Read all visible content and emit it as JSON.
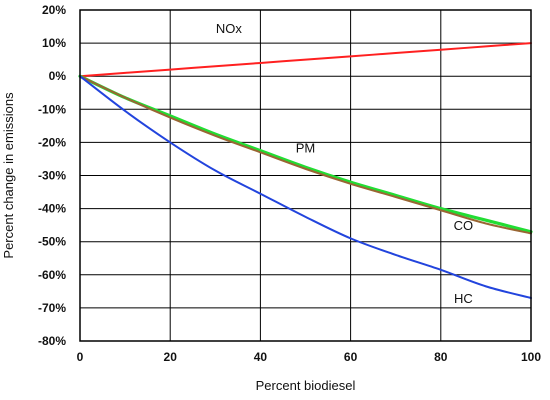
{
  "chart_data": {
    "type": "line",
    "title": "",
    "xlabel": "Percent biodiesel",
    "ylabel": "Percent change in emissions",
    "xlim": [
      0,
      100
    ],
    "ylim": [
      -80,
      20
    ],
    "xticks": [
      0,
      20,
      40,
      60,
      80,
      100
    ],
    "xtick_labels": [
      "0",
      "20",
      "40",
      "60",
      "80",
      "100"
    ],
    "yticks": [
      20,
      10,
      0,
      -10,
      -20,
      -30,
      -40,
      -50,
      -60,
      -70,
      -80
    ],
    "ytick_labels": [
      "20%",
      "10%",
      "0%",
      "-10%",
      "-20%",
      "-30%",
      "-40%",
      "-50%",
      "-60%",
      "-70%",
      "-80%"
    ],
    "grid": true,
    "legend": "none",
    "x": [
      0,
      10,
      20,
      30,
      40,
      50,
      60,
      70,
      80,
      90,
      100
    ],
    "series": [
      {
        "name": "NOx",
        "color": "#ff2020",
        "values": [
          0,
          1,
          2,
          3,
          4,
          5,
          6,
          7,
          8,
          9,
          10
        ]
      },
      {
        "name": "PM",
        "color": "#22dd33",
        "values": [
          0,
          -6.5,
          -12,
          -17.5,
          -22.5,
          -27.5,
          -32,
          -36,
          -40,
          -43.5,
          -47
        ]
      },
      {
        "name": "CO",
        "color": "#996633",
        "values": [
          0,
          -6.5,
          -12.5,
          -18,
          -23,
          -28,
          -32.5,
          -36.5,
          -40.5,
          -44.5,
          -47.5
        ]
      },
      {
        "name": "HC",
        "color": "#2244dd",
        "values": [
          0,
          -10.5,
          -20,
          -28.5,
          -35.5,
          -42.5,
          -49,
          -54,
          -58.5,
          -63.5,
          -67
        ]
      }
    ],
    "annotations": [
      "NOx",
      "PM",
      "CO",
      "HC"
    ]
  }
}
